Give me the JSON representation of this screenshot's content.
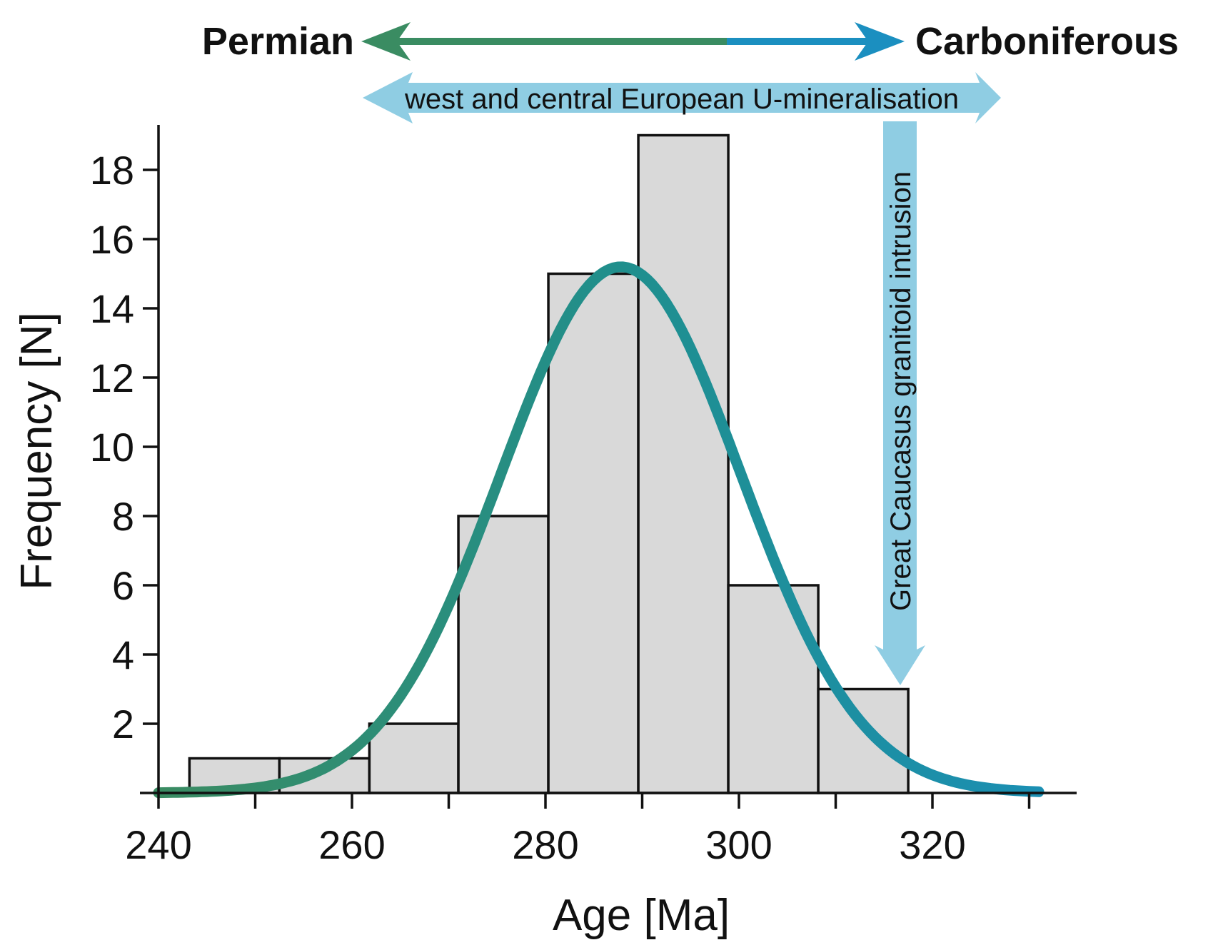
{
  "chart_data": {
    "type": "bar",
    "title": "",
    "xlabel": "Age [Ma]",
    "ylabel": "Frequency [N]",
    "xlim": [
      240,
      335
    ],
    "ylim": [
      0,
      19.3
    ],
    "x_ticks": [
      240,
      260,
      280,
      300,
      320
    ],
    "x_minor_ticks": [
      250,
      270,
      290,
      310,
      330
    ],
    "y_ticks": [
      2,
      4,
      6,
      8,
      10,
      12,
      14,
      16,
      18
    ],
    "bins": [
      {
        "start": 243.2,
        "end": 252.5,
        "value": 1
      },
      {
        "start": 252.5,
        "end": 261.8,
        "value": 1
      },
      {
        "start": 261.8,
        "end": 271.0,
        "value": 2
      },
      {
        "start": 271.0,
        "end": 280.3,
        "value": 8
      },
      {
        "start": 280.3,
        "end": 289.6,
        "value": 15
      },
      {
        "start": 289.6,
        "end": 298.9,
        "value": 19
      },
      {
        "start": 298.9,
        "end": 308.2,
        "value": 6
      },
      {
        "start": 308.2,
        "end": 317.5,
        "value": 3
      }
    ],
    "fit_curve": {
      "type": "normal",
      "peak_x": 287.8,
      "peak_y": 15.2,
      "sigma": 12.4,
      "x_range": [
        240,
        331
      ],
      "colors": [
        "#3a8c62",
        "#1f8f8f",
        "#1b8fb3"
      ]
    },
    "bar_fill": "#d9d9d9",
    "bar_stroke": "#111111",
    "period_arrow": {
      "left_label": "Permian",
      "right_label": "Carboniferous",
      "left_color": "#3a8c62",
      "right_color": "#1b8fc0",
      "boundary_age": 298.9
    },
    "annotations": [
      {
        "text": "west and central European U-mineralisation",
        "color": "#8fcde3",
        "from_age": 261.5,
        "to_age": 327.5
      },
      {
        "text": "Great Caucasus granitoid intrusion",
        "color": "#8fcde3",
        "age": 317.5
      }
    ]
  }
}
